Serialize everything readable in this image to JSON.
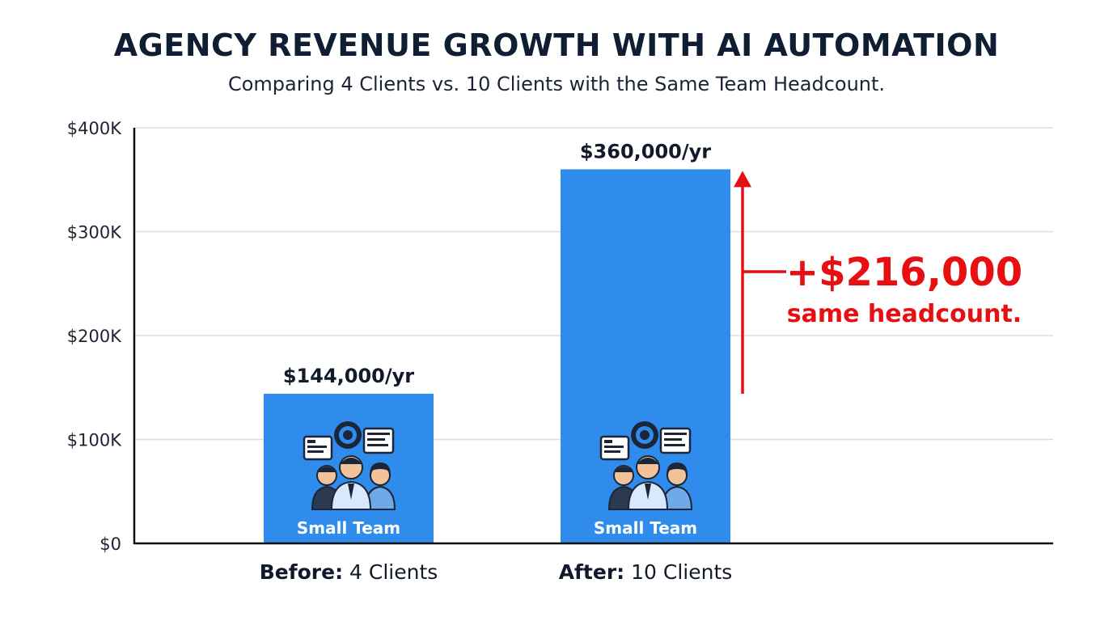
{
  "chart_data": {
    "type": "bar",
    "title": "AGENCY REVENUE GROWTH WITH AI AUTOMATION",
    "subtitle": "Comparing 4 Clients vs. 10 Clients with the Same Team Headcount.",
    "categories": [
      {
        "bold": "Before:",
        "rest": " 4 Clients"
      },
      {
        "bold": "After:",
        "rest": " 10 Clients"
      }
    ],
    "values": [
      144000,
      360000
    ],
    "data_labels": [
      "$144,000/yr",
      "$360,000/yr"
    ],
    "bar_captions": [
      "Small Team",
      "Small Team"
    ],
    "bar_icon": "team-automation-icon",
    "ylim": [
      0,
      400000
    ],
    "yticks": [
      {
        "value": 0,
        "label": "$0"
      },
      {
        "value": 100000,
        "label": "$100K"
      },
      {
        "value": 200000,
        "label": "$200K"
      },
      {
        "value": 300000,
        "label": "$300K"
      },
      {
        "value": 400000,
        "label": "$400K"
      }
    ],
    "grid": true,
    "annotation": {
      "amount": "+$216,000",
      "note": "same headcount."
    },
    "colors": {
      "bar": "#2f8cec",
      "annotation": "#e60f12",
      "axis": "#111111",
      "grid": "#dddddd"
    }
  }
}
